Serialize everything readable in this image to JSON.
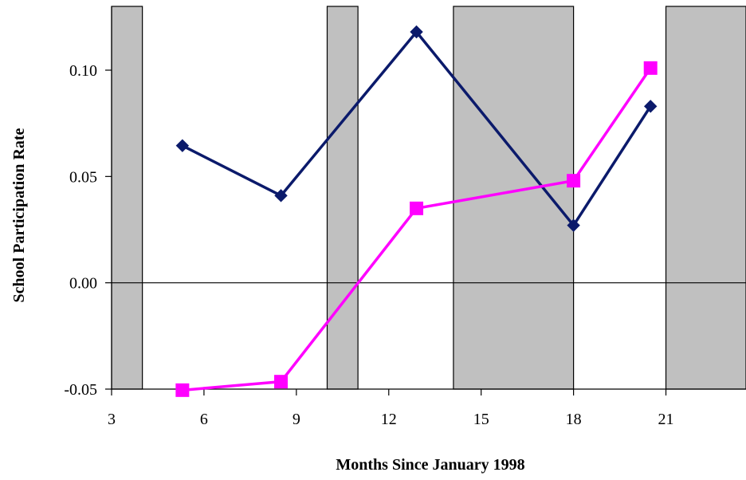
{
  "chart_data": {
    "type": "line",
    "title": "",
    "xlabel": "Months Since January 1998",
    "ylabel": "School Participation Rate",
    "xlim": [
      3,
      23.6
    ],
    "ylim": [
      -0.05,
      0.13
    ],
    "x_ticks": [
      3,
      6,
      9,
      12,
      15,
      18,
      21
    ],
    "x_tick_labels": [
      "3",
      "6",
      "9",
      "12",
      "15",
      "18",
      "21"
    ],
    "y_ticks": [
      -0.05,
      0.0,
      0.05,
      0.1
    ],
    "y_tick_labels": [
      "-0.05",
      "0.00",
      "0.05",
      "0.10"
    ],
    "grid": false,
    "zero_line": true,
    "shaded_periods": [
      {
        "start": 3,
        "end": 4
      },
      {
        "start": 10,
        "end": 11
      },
      {
        "start": 14.1,
        "end": 18
      },
      {
        "start": 21,
        "end": 23.6
      }
    ],
    "series": [
      {
        "marker": "diamond",
        "color": "#0B1A6B",
        "x": [
          5.3,
          8.5,
          12.9,
          18.0,
          20.5
        ],
        "values": [
          0.0645,
          0.041,
          0.118,
          0.027,
          0.083
        ]
      },
      {
        "marker": "square",
        "color": "#FF00FF",
        "x": [
          5.3,
          8.5,
          12.9,
          18.0,
          20.5
        ],
        "values": [
          -0.0505,
          -0.0465,
          0.035,
          0.048,
          0.101
        ]
      }
    ]
  }
}
